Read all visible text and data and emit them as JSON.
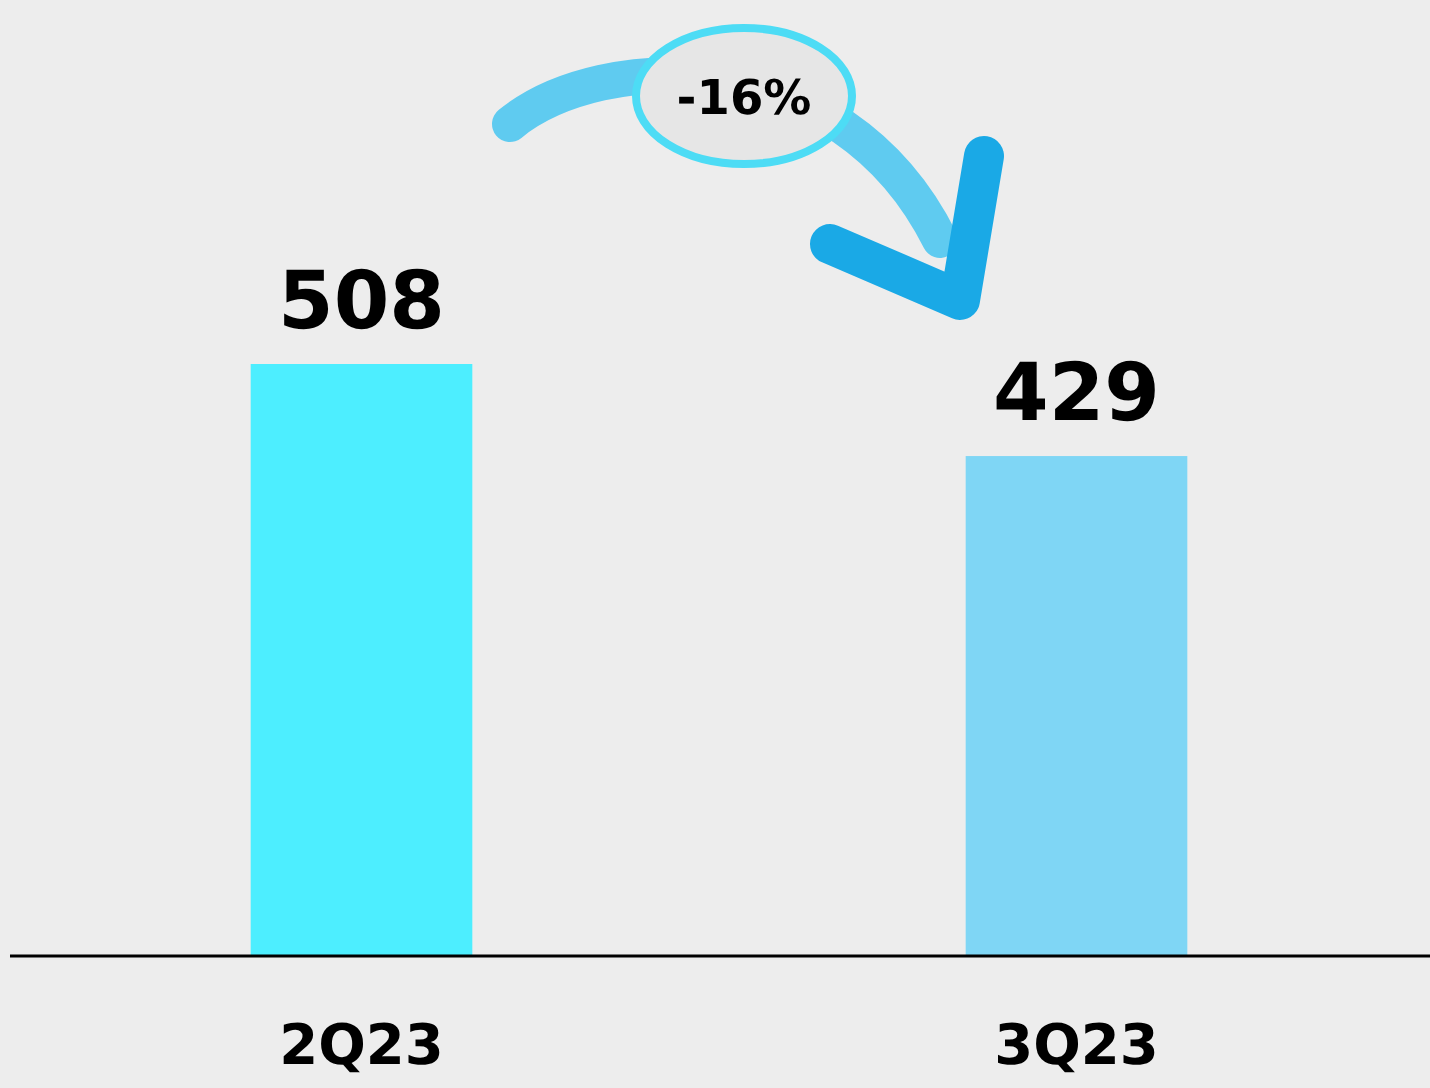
{
  "chart_data": {
    "type": "bar",
    "categories": [
      "2Q23",
      "3Q23"
    ],
    "values": [
      508,
      429
    ],
    "colors": [
      "#4deeff",
      "#7fd6f5"
    ],
    "data_labels": true,
    "annotations": [
      "-16%"
    ]
  }
}
